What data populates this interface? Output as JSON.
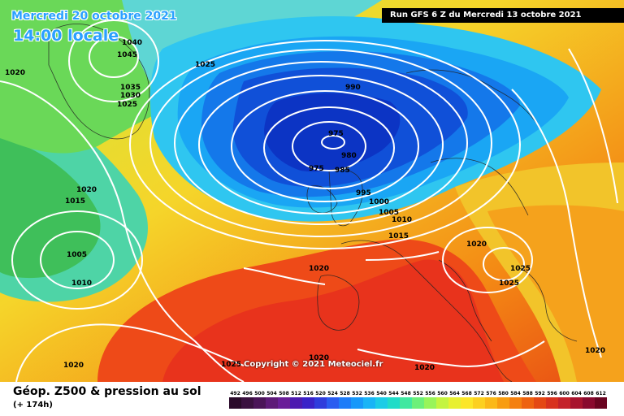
{
  "header": {
    "date": "Mercredi 20 octobre 2021",
    "time": "14:00 locale",
    "run": "Run GFS 6 Z du Mercredi 13 octobre 2021"
  },
  "copyright": "Copyright © 2021 Meteociel.fr",
  "legend": {
    "title": "Géop. Z500 & pression au sol",
    "subtitle": "(+ 174h)",
    "scale_labels": [
      "492",
      "496",
      "500",
      "504",
      "508",
      "512",
      "516",
      "520",
      "524",
      "528",
      "532",
      "536",
      "540",
      "544",
      "548",
      "552",
      "556",
      "560",
      "564",
      "568",
      "572",
      "576",
      "580",
      "584",
      "588",
      "592",
      "596",
      "600",
      "604",
      "608",
      "612"
    ],
    "scale_colors": [
      "#2a0a2a",
      "#3b1040",
      "#4b1458",
      "#5e1a78",
      "#6a1e98",
      "#4d1ab0",
      "#3a22c8",
      "#2f3cdc",
      "#2a5cf0",
      "#1e7cf8",
      "#1798fa",
      "#19b4f6",
      "#1ccce6",
      "#20dcc8",
      "#40e8a0",
      "#6cf07a",
      "#98f45a",
      "#c4f440",
      "#e8f030",
      "#fce628",
      "#fcd020",
      "#fbb818",
      "#f89c10",
      "#f48010",
      "#ee6210",
      "#e44814",
      "#d8321e",
      "#c4222a",
      "#a8142e",
      "#8a0a2e",
      "#6a0420"
    ]
  },
  "isobar_labels": [
    "1040",
    "1045",
    "1035",
    "1030",
    "1025",
    "1025",
    "1020",
    "990",
    "975",
    "980",
    "975",
    "985",
    "995",
    "1000",
    "1005",
    "1010",
    "1015",
    "1020",
    "1015",
    "1005",
    "1010",
    "1020",
    "1020",
    "1025",
    "1025",
    "1020",
    "1020",
    "1025",
    "1020",
    "1020"
  ],
  "colors": {
    "accent_title": "#2aa0ff",
    "isobar": "#ffffff"
  }
}
